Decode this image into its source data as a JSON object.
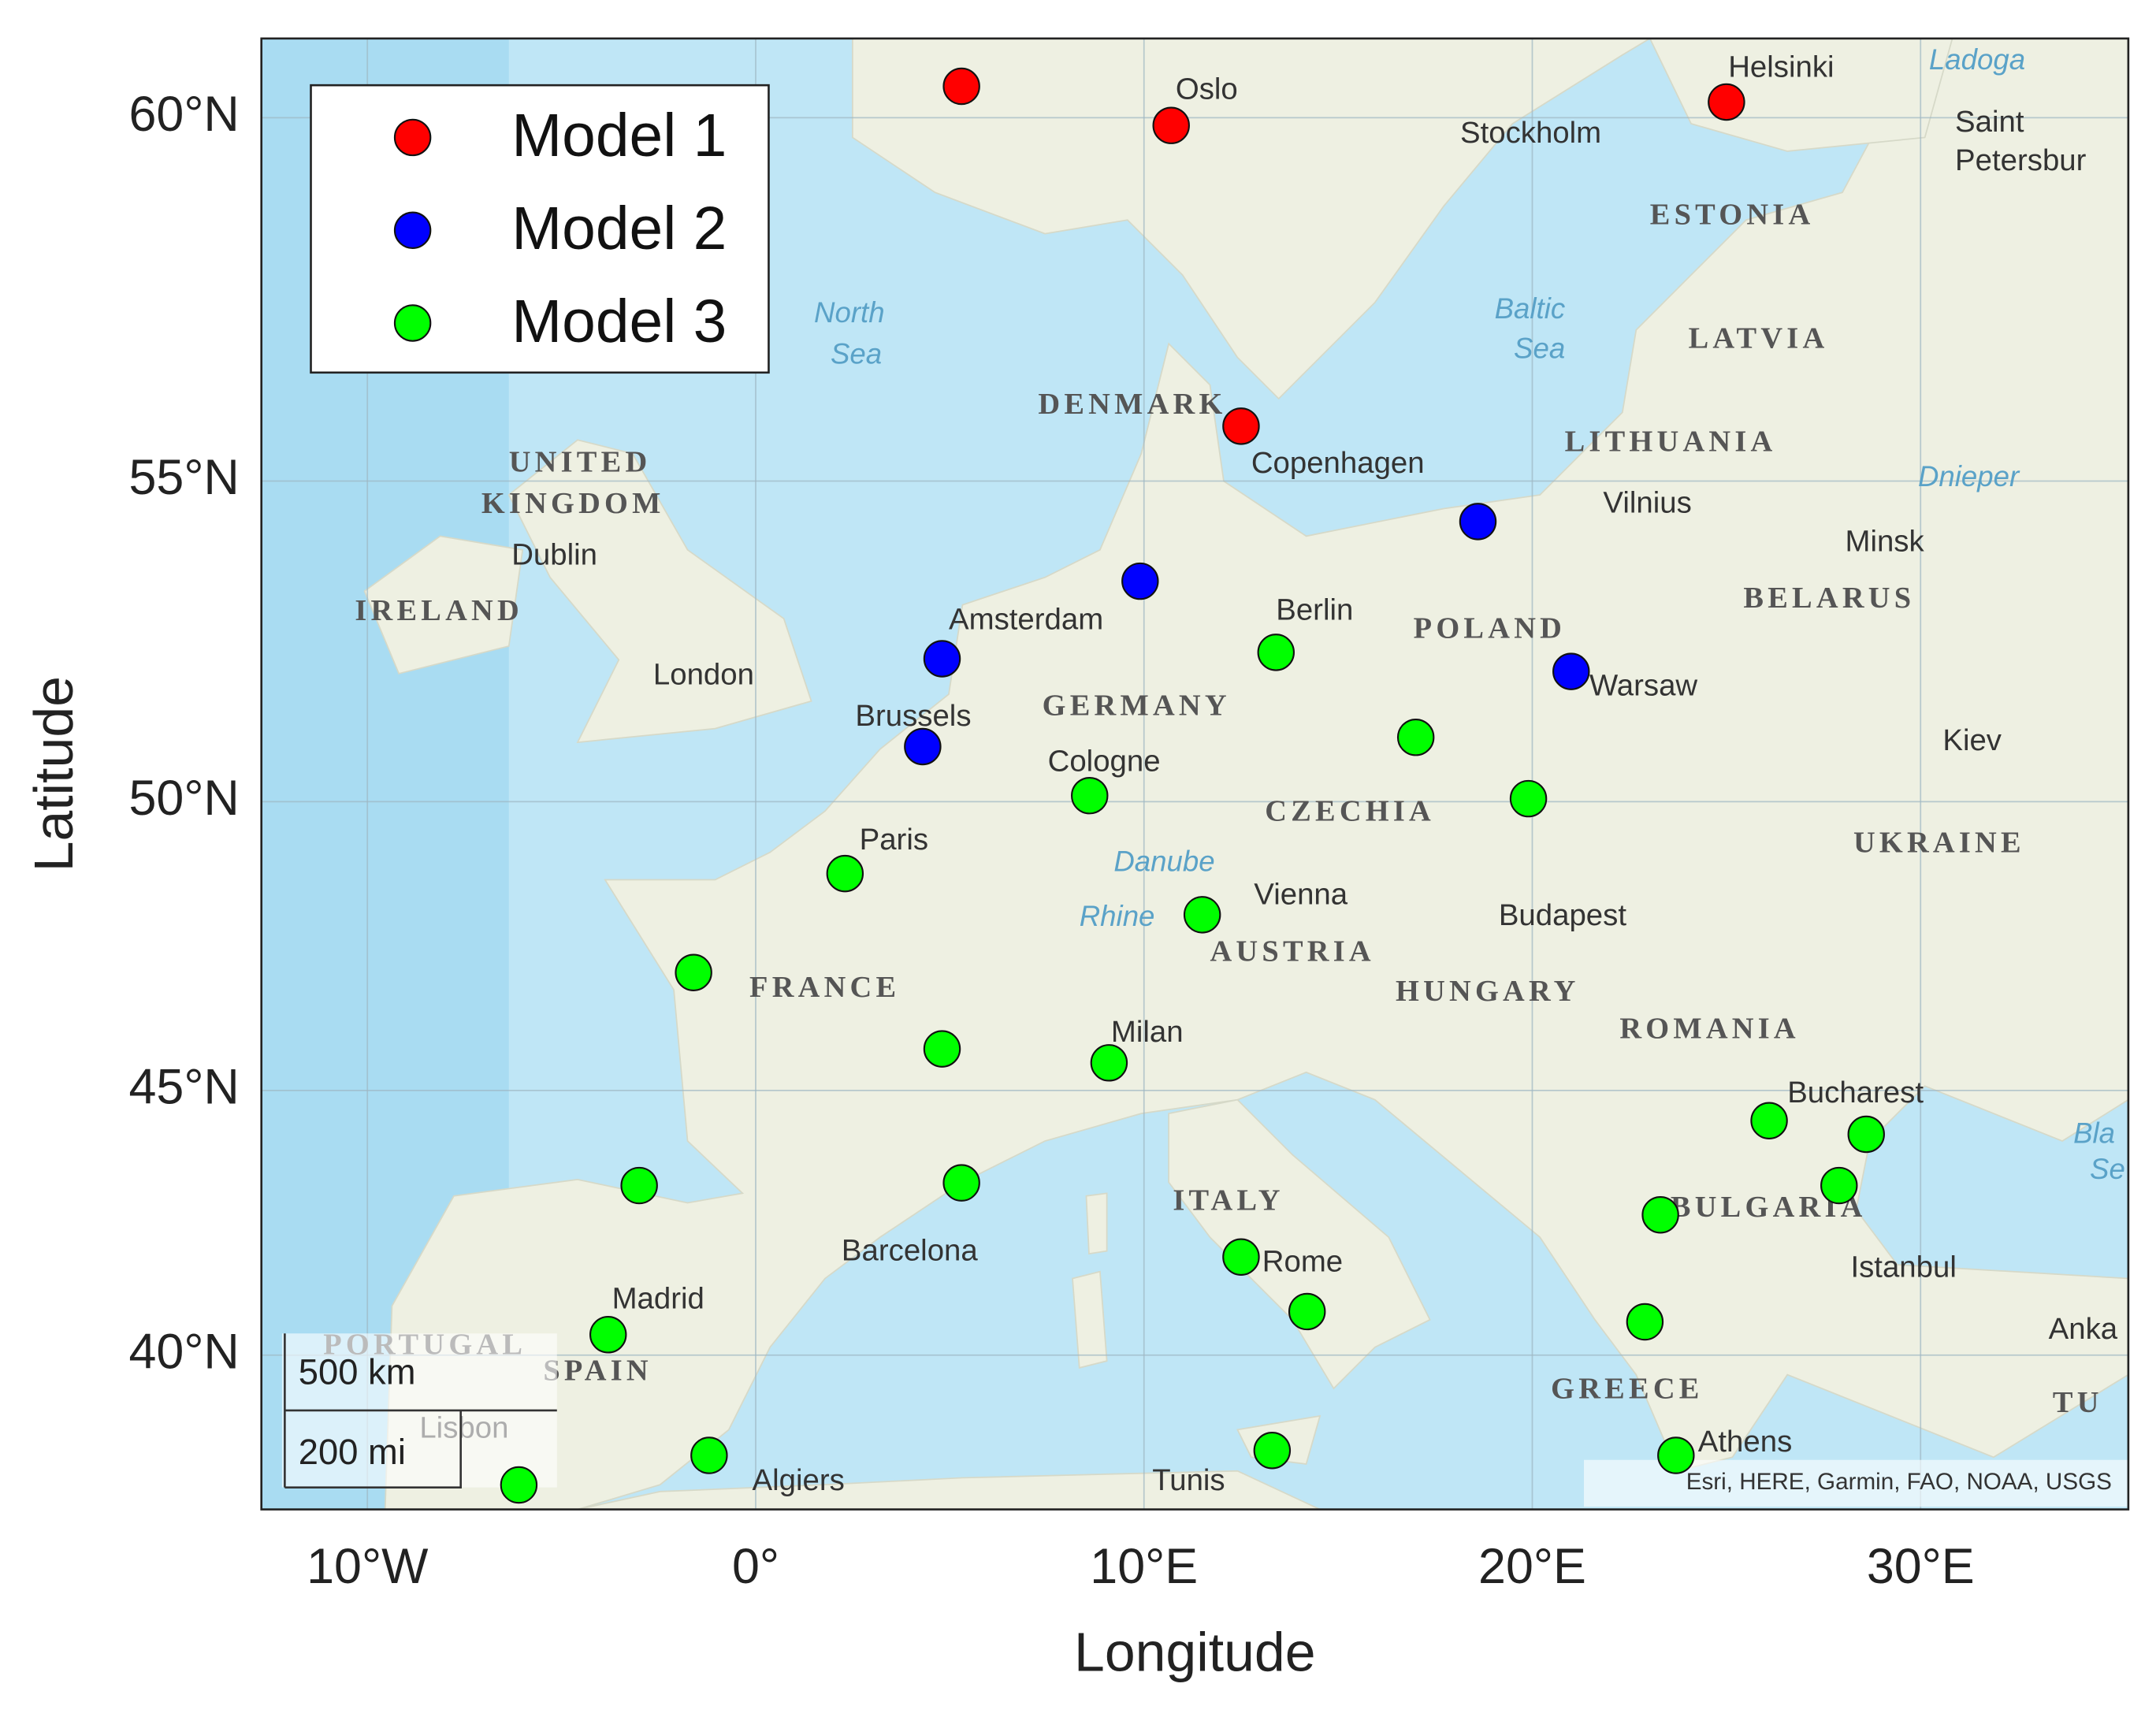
{
  "chart_data": {
    "type": "scatter",
    "projection": "mercator",
    "x_label": "Longitude",
    "y_label": "Latitude",
    "xlim": [
      -12.73,
      35.35
    ],
    "ylim": [
      36.9,
      61.0
    ],
    "xticks": [
      {
        "value": -10,
        "label": "10°W"
      },
      {
        "value": 0,
        "label": "0°"
      },
      {
        "value": 10,
        "label": "10°E"
      },
      {
        "value": 20,
        "label": "20°E"
      },
      {
        "value": 30,
        "label": "30°E"
      }
    ],
    "yticks": [
      {
        "value": 40,
        "label": "40°N"
      },
      {
        "value": 45,
        "label": "45°N"
      },
      {
        "value": 50,
        "label": "50°N"
      },
      {
        "value": 55,
        "label": "55°N"
      },
      {
        "value": 60,
        "label": "60°N"
      }
    ],
    "grid": true,
    "legend": "upper left",
    "series": [
      {
        "name": "Model 1",
        "color": "#ff0000",
        "x": [
          5.3,
          10.7,
          12.5,
          25.0
        ],
        "values": [
          60.4,
          59.9,
          55.8,
          60.2
        ]
      },
      {
        "name": "Model 2",
        "color": "#0000ff",
        "x": [
          18.6,
          9.9,
          4.8,
          21.0,
          4.3
        ],
        "values": [
          54.4,
          53.5,
          52.3,
          52.1,
          50.9
        ]
      },
      {
        "name": "Model 3",
        "color": "#00ff00",
        "x": [
          13.4,
          17.0,
          19.9,
          8.6,
          2.3,
          11.5,
          -1.6,
          4.8,
          9.1,
          26.1,
          28.6,
          -3.0,
          5.3,
          27.9,
          23.3,
          12.5,
          14.2,
          22.9,
          -3.8,
          -1.2,
          13.3,
          23.7,
          -6.1
        ],
        "values": [
          52.4,
          51.05,
          50.05,
          50.1,
          48.8,
          48.1,
          47.1,
          45.75,
          45.5,
          44.45,
          44.2,
          43.25,
          43.3,
          43.25,
          42.7,
          41.9,
          40.85,
          40.65,
          40.4,
          38.0,
          38.1,
          38.0,
          37.4
        ]
      }
    ],
    "map_labels": [
      "Oslo",
      "Helsinki",
      "Ladoga",
      "Saint",
      "Petersbur",
      "Stockholm",
      "ESTONIA",
      "North",
      "Sea",
      "Baltic",
      "Sea",
      "LATVIA",
      "DENMARK",
      "LITHUANIA",
      "Copenhagen",
      "UNITED",
      "KINGDOM",
      "Vilnius",
      "Dnieper",
      "Minsk",
      "Dublin",
      "IRELAND",
      "Amsterdam",
      "Berlin",
      "POLAND",
      "BELARUS",
      "London",
      "Warsaw",
      "GERMANY",
      "Brussels",
      "Cologne",
      "Kiev",
      "Paris",
      "CZECHIA",
      "UKRAINE",
      "Danube",
      "Rhine",
      "Vienna",
      "Budapest",
      "AUSTRIA",
      "FRANCE",
      "HUNGARY",
      "ROMANIA",
      "Milan",
      "Bucharest",
      "Bla",
      "Se",
      "ITALY",
      "BULGARIA",
      "Barcelona",
      "Rome",
      "Istanbul",
      "Madrid",
      "PORTUGAL",
      "SPAIN",
      "Anka",
      "GREECE",
      "TU",
      "Lisbon",
      "Athens",
      "Algiers",
      "Tunis"
    ],
    "scale_bar": [
      "500 km",
      "200 mi"
    ],
    "attribution": "Esri, HERE, Garmin, FAO, NOAA, USGS"
  }
}
